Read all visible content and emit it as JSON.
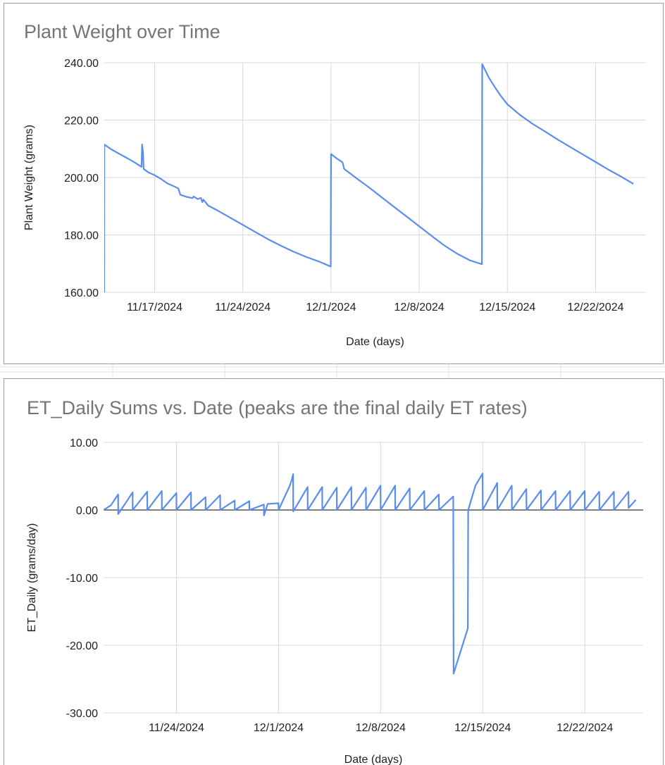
{
  "chart_data": [
    {
      "type": "line",
      "title": "Plant Weight over Time",
      "xlabel": "Date (days)",
      "ylabel": "Plant Weight (grams)",
      "ylim": [
        160,
        240
      ],
      "yticks": [
        "160.00",
        "180.00",
        "200.00",
        "220.00",
        "240.00"
      ],
      "xlim": [
        "2024-11-13",
        "2024-12-26"
      ],
      "xticks": [
        {
          "date": "2024-11-17",
          "label": "11/17/2024"
        },
        {
          "date": "2024-11-24",
          "label": "11/24/2024"
        },
        {
          "date": "2024-12-01",
          "label": "12/1/2024"
        },
        {
          "date": "2024-12-08",
          "label": "12/8/2024"
        },
        {
          "date": "2024-12-15",
          "label": "12/15/2024"
        },
        {
          "date": "2024-12-22",
          "label": "12/22/2024"
        }
      ],
      "grid": true,
      "color": "#5b8def",
      "series": [
        {
          "points": [
            [
              "2024-11-13T00:00",
              160.0
            ],
            [
              "2024-11-13T00:10",
              211.5
            ],
            [
              "2024-11-13T12:00",
              210.0
            ],
            [
              "2024-11-14T00:00",
              208.7
            ],
            [
              "2024-11-14T12:00",
              207.5
            ],
            [
              "2024-11-15T00:00",
              206.3
            ],
            [
              "2024-11-15T12:00",
              205.0
            ],
            [
              "2024-11-15T23:00",
              203.7
            ],
            [
              "2024-11-16T00:00",
              211.5
            ],
            [
              "2024-11-16T02:00",
              208.5
            ],
            [
              "2024-11-16T03:00",
              203.0
            ],
            [
              "2024-11-16T12:00",
              201.8
            ],
            [
              "2024-11-17T00:00",
              200.8
            ],
            [
              "2024-11-17T12:00",
              199.5
            ],
            [
              "2024-11-18T00:00",
              198.0
            ],
            [
              "2024-11-18T12:00",
              197.0
            ],
            [
              "2024-11-18T21:00",
              196.2
            ],
            [
              "2024-11-19T01:00",
              194.0
            ],
            [
              "2024-11-19T12:00",
              193.3
            ],
            [
              "2024-11-20T00:00",
              192.8
            ],
            [
              "2024-11-20T02:00",
              193.4
            ],
            [
              "2024-11-20T10:00",
              192.5
            ],
            [
              "2024-11-20T16:00",
              192.9
            ],
            [
              "2024-11-20T19:00",
              191.4
            ],
            [
              "2024-11-20T21:00",
              192.3
            ],
            [
              "2024-11-21T06:00",
              190.2
            ],
            [
              "2024-11-22T00:00",
              188.5
            ],
            [
              "2024-11-23T00:00",
              186.0
            ],
            [
              "2024-11-24T00:00",
              183.5
            ],
            [
              "2024-11-25T00:00",
              181.0
            ],
            [
              "2024-11-26T00:00",
              178.5
            ],
            [
              "2024-11-27T00:00",
              176.3
            ],
            [
              "2024-11-28T00:00",
              174.2
            ],
            [
              "2024-11-29T00:00",
              172.4
            ],
            [
              "2024-11-30T00:00",
              170.8
            ],
            [
              "2024-11-30T23:30",
              169.0
            ],
            [
              "2024-12-01T00:00",
              208.2
            ],
            [
              "2024-12-01T12:00",
              206.5
            ],
            [
              "2024-12-01T22:00",
              205.3
            ],
            [
              "2024-12-02T01:00",
              203.0
            ],
            [
              "2024-12-03T00:00",
              199.8
            ],
            [
              "2024-12-04T00:00",
              196.6
            ],
            [
              "2024-12-05T00:00",
              193.2
            ],
            [
              "2024-12-06T00:00",
              189.8
            ],
            [
              "2024-12-07T00:00",
              186.4
            ],
            [
              "2024-12-08T00:00",
              183.0
            ],
            [
              "2024-12-09T00:00",
              179.6
            ],
            [
              "2024-12-10T00:00",
              176.3
            ],
            [
              "2024-12-11T00:00",
              173.5
            ],
            [
              "2024-12-12T00:00",
              171.2
            ],
            [
              "2024-12-12T23:30",
              169.8
            ],
            [
              "2024-12-13T00:00",
              239.5
            ],
            [
              "2024-12-13T12:00",
              235.0
            ],
            [
              "2024-12-14T00:00",
              231.5
            ],
            [
              "2024-12-14T12:00",
              228.3
            ],
            [
              "2024-12-15T00:00",
              225.5
            ],
            [
              "2024-12-16T00:00",
              221.8
            ],
            [
              "2024-12-17T00:00",
              218.7
            ],
            [
              "2024-12-18T00:00",
              216.0
            ],
            [
              "2024-12-19T00:00",
              213.2
            ],
            [
              "2024-12-20T00:00",
              210.6
            ],
            [
              "2024-12-21T00:00",
              208.0
            ],
            [
              "2024-12-22T00:00",
              205.4
            ],
            [
              "2024-12-23T00:00",
              202.8
            ],
            [
              "2024-12-24T00:00",
              200.4
            ],
            [
              "2024-12-25T00:00",
              197.8
            ]
          ]
        }
      ]
    },
    {
      "type": "line",
      "title": "ET_Daily Sums vs. Date (peaks are the final daily ET rates)",
      "xlabel": "Date (days)",
      "ylabel": "ET_Daily (grams/day)",
      "ylim": [
        -30,
        10
      ],
      "yticks": [
        "-30.00",
        "-20.00",
        "-10.00",
        "0.00",
        "10.00"
      ],
      "xlim": [
        "2024-11-19",
        "2024-12-26"
      ],
      "xticks": [
        {
          "date": "2024-11-24",
          "label": "11/24/2024"
        },
        {
          "date": "2024-12-01",
          "label": "12/1/2024"
        },
        {
          "date": "2024-12-08",
          "label": "12/8/2024"
        },
        {
          "date": "2024-12-15",
          "label": "12/15/2024"
        },
        {
          "date": "2024-12-22",
          "label": "12/22/2024"
        }
      ],
      "grid": true,
      "zero_line": true,
      "color": "#5b8def",
      "series": [
        {
          "points": [
            [
              "2024-11-19T00:00",
              0.0
            ],
            [
              "2024-11-19T12:00",
              0.7
            ],
            [
              "2024-11-20T00:00",
              2.3
            ],
            [
              "2024-11-20T00:10",
              -0.6
            ],
            [
              "2024-11-20T23:50",
              2.6
            ],
            [
              "2024-11-21T00:00",
              0.0
            ],
            [
              "2024-11-21T23:50",
              2.7
            ],
            [
              "2024-11-22T00:00",
              0.0
            ],
            [
              "2024-11-22T23:50",
              2.8
            ],
            [
              "2024-11-23T00:00",
              0.0
            ],
            [
              "2024-11-23T23:50",
              2.5
            ],
            [
              "2024-11-24T00:00",
              0.0
            ],
            [
              "2024-11-24T23:50",
              2.6
            ],
            [
              "2024-11-25T00:00",
              0.0
            ],
            [
              "2024-11-25T23:50",
              1.9
            ],
            [
              "2024-11-26T00:00",
              0.0
            ],
            [
              "2024-11-26T23:50",
              2.2
            ],
            [
              "2024-11-27T00:00",
              0.0
            ],
            [
              "2024-11-27T23:50",
              1.4
            ],
            [
              "2024-11-28T00:00",
              0.0
            ],
            [
              "2024-11-28T23:50",
              1.3
            ],
            [
              "2024-11-29T00:00",
              0.0
            ],
            [
              "2024-11-29T23:50",
              0.8
            ],
            [
              "2024-11-30T00:00",
              -0.8
            ],
            [
              "2024-11-30T06:00",
              0.9
            ],
            [
              "2024-11-30T23:50",
              1.0
            ],
            [
              "2024-12-01T00:00",
              0.0
            ],
            [
              "2024-12-01T18:00",
              3.5
            ],
            [
              "2024-12-01T22:00",
              4.5
            ],
            [
              "2024-12-02T00:00",
              5.3
            ],
            [
              "2024-12-02T00:10",
              -0.2
            ],
            [
              "2024-12-02T23:50",
              3.4
            ],
            [
              "2024-12-03T00:00",
              0.0
            ],
            [
              "2024-12-03T23:50",
              3.4
            ],
            [
              "2024-12-04T00:00",
              0.0
            ],
            [
              "2024-12-04T23:50",
              3.3
            ],
            [
              "2024-12-05T00:00",
              0.0
            ],
            [
              "2024-12-05T23:50",
              3.4
            ],
            [
              "2024-12-06T00:00",
              0.0
            ],
            [
              "2024-12-06T23:50",
              3.3
            ],
            [
              "2024-12-07T00:00",
              0.0
            ],
            [
              "2024-12-07T23:50",
              3.6
            ],
            [
              "2024-12-08T00:00",
              0.0
            ],
            [
              "2024-12-08T23:50",
              3.6
            ],
            [
              "2024-12-09T00:00",
              0.0
            ],
            [
              "2024-12-09T23:50",
              3.2
            ],
            [
              "2024-12-10T00:00",
              0.0
            ],
            [
              "2024-12-10T23:50",
              2.8
            ],
            [
              "2024-12-11T00:00",
              0.0
            ],
            [
              "2024-12-11T23:50",
              2.3
            ],
            [
              "2024-12-12T00:00",
              0.0
            ],
            [
              "2024-12-12T23:30",
              2.0
            ],
            [
              "2024-12-13T00:00",
              -24.2
            ],
            [
              "2024-12-13T23:30",
              -17.5
            ],
            [
              "2024-12-14T00:00",
              0.0
            ],
            [
              "2024-12-14T12:00",
              3.6
            ],
            [
              "2024-12-14T23:50",
              5.4
            ],
            [
              "2024-12-15T00:00",
              0.0
            ],
            [
              "2024-12-15T23:50",
              4.0
            ],
            [
              "2024-12-16T00:00",
              0.0
            ],
            [
              "2024-12-16T23:50",
              3.6
            ],
            [
              "2024-12-17T00:00",
              0.0
            ],
            [
              "2024-12-17T23:50",
              3.1
            ],
            [
              "2024-12-18T00:00",
              0.0
            ],
            [
              "2024-12-18T23:50",
              2.9
            ],
            [
              "2024-12-19T00:00",
              0.0
            ],
            [
              "2024-12-19T23:50",
              2.8
            ],
            [
              "2024-12-20T00:00",
              0.0
            ],
            [
              "2024-12-20T23:50",
              2.8
            ],
            [
              "2024-12-21T00:00",
              0.0
            ],
            [
              "2024-12-21T23:50",
              2.8
            ],
            [
              "2024-12-22T00:00",
              0.0
            ],
            [
              "2024-12-22T23:50",
              2.7
            ],
            [
              "2024-12-23T00:00",
              0.0
            ],
            [
              "2024-12-23T23:50",
              2.7
            ],
            [
              "2024-12-24T00:00",
              0.0
            ],
            [
              "2024-12-24T23:50",
              2.7
            ],
            [
              "2024-12-25T00:00",
              0.3
            ],
            [
              "2024-12-25T12:00",
              1.5
            ]
          ]
        }
      ]
    }
  ]
}
